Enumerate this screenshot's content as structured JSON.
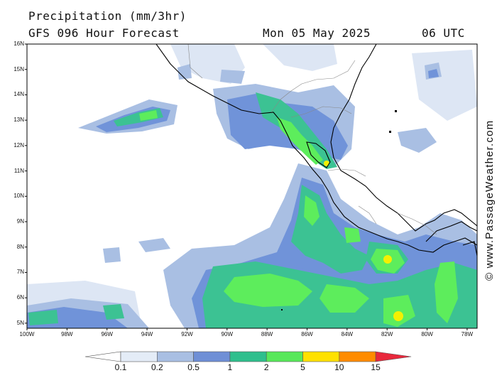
{
  "header": {
    "title": "Precipitation (mm/3hr)",
    "subtitle": "GFS 096 Hour Forecast",
    "date": "Mon 05 May 2025",
    "time": "06 UTC"
  },
  "axes": {
    "lat_labels": [
      "16N",
      "15N",
      "14N",
      "13N",
      "12N",
      "11N",
      "10N",
      "9N",
      "8N",
      "7N",
      "6N",
      "5N"
    ],
    "lat_values": [
      16,
      15,
      14,
      13,
      12,
      11,
      10,
      9,
      8,
      7,
      6,
      5
    ],
    "lon_labels": [
      "100W",
      "98W",
      "96W",
      "94W",
      "92W",
      "90W",
      "88W",
      "86W",
      "84W",
      "82W",
      "80W",
      "78W"
    ],
    "lon_values": [
      -100,
      -98,
      -96,
      -94,
      -92,
      -90,
      -88,
      -86,
      -84,
      -82,
      -80,
      -78
    ],
    "lat_range": [
      4.8,
      16.0
    ],
    "lon_range": [
      -100.0,
      -77.5
    ]
  },
  "copyright": "© www.PassageWeather.com",
  "legend": {
    "labels": [
      "0.1",
      "0.2",
      "0.5",
      "1",
      "2",
      "5",
      "10",
      "15"
    ],
    "colors": [
      "#ffffff",
      "#e4ecf7",
      "#a9bfe3",
      "#6f8fd6",
      "#2fbf8d",
      "#58e85a",
      "#ffe100",
      "#ff8c00",
      "#e8283c"
    ]
  },
  "colors": {
    "p02": "#dde6f4",
    "p05": "#a9bfe3",
    "p1": "#7093d9",
    "p2": "#3cc293",
    "p5": "#5ded5c",
    "p10": "#f4f000",
    "p15": "#ffa500"
  }
}
